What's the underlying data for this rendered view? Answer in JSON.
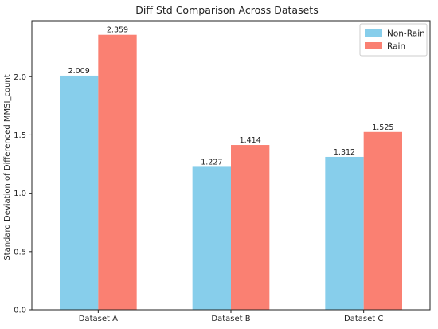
{
  "chart_data": {
    "type": "bar",
    "title": "Diff Std Comparison Across Datasets",
    "xlabel": "",
    "ylabel": "Standard Deviation of Differenced MMSI_count",
    "categories": [
      "Dataset A",
      "Dataset B",
      "Dataset C"
    ],
    "series": [
      {
        "name": "Non-Rain",
        "color": "#87ceeb",
        "values": [
          2.009,
          1.227,
          1.312
        ],
        "labels": [
          "2.009",
          "1.227",
          "1.312"
        ]
      },
      {
        "name": "Rain",
        "color": "#fa8072",
        "values": [
          2.359,
          1.414,
          1.525
        ],
        "labels": [
          "2.359",
          "1.414",
          "1.525"
        ]
      }
    ],
    "ylim": [
      0,
      2.48
    ],
    "yticks": [
      0.0,
      0.5,
      1.0,
      1.5,
      2.0
    ],
    "ytick_labels": [
      "0.0",
      "0.5",
      "1.0",
      "1.5",
      "2.0"
    ],
    "grid": false,
    "legend_position": "top-right"
  }
}
